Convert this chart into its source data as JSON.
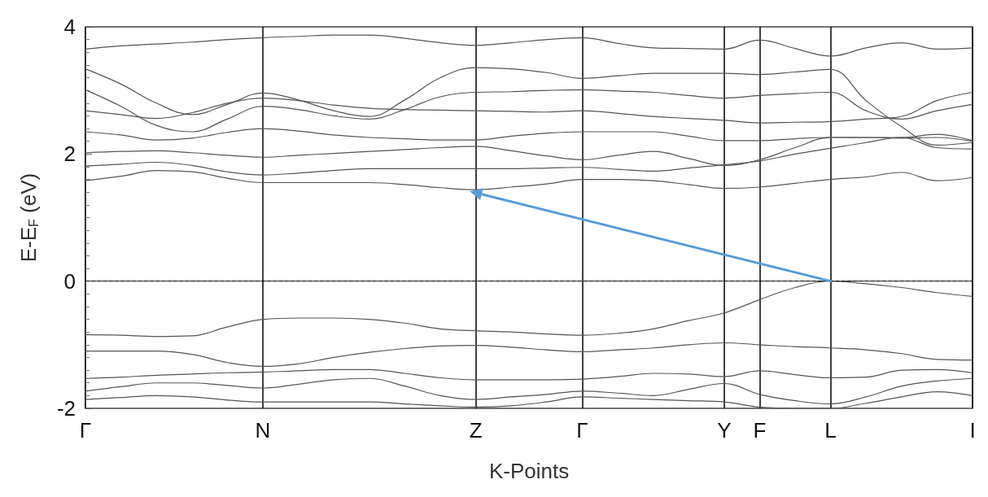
{
  "chart_data": {
    "type": "line",
    "xlabel": "K-Points",
    "ylabel": "E-E$_{F}$ (eV)",
    "categories": [
      "Γ",
      null,
      null,
      null,
      null,
      "N",
      null,
      null,
      null,
      null,
      null,
      "Z",
      null,
      null,
      "Γ",
      null,
      null,
      null,
      "Y",
      "F",
      null,
      "L",
      null,
      null,
      null,
      "I"
    ],
    "ylim": [
      -2,
      4
    ],
    "yticks": [
      -2,
      0,
      2,
      4
    ],
    "grid": "x",
    "line_style": "solid",
    "series": [
      {
        "color": "#555555",
        "values": [
          -0.84,
          -0.85,
          -0.87,
          -0.86,
          -0.72,
          -0.6,
          -0.58,
          -0.58,
          -0.6,
          -0.66,
          -0.75,
          -0.78,
          -0.8,
          -0.83,
          -0.85,
          -0.82,
          -0.75,
          -0.62,
          -0.5,
          -0.29,
          -0.1,
          0,
          -0.04,
          -0.1,
          -0.18,
          -0.24
        ]
      },
      {
        "color": "#555555",
        "values": [
          -1.1,
          -1.1,
          -1.1,
          -1.15,
          -1.28,
          -1.34,
          -1.3,
          -1.2,
          -1.12,
          -1.06,
          -1.02,
          -1.01,
          -1.04,
          -1.08,
          -1.11,
          -1.08,
          -1.05,
          -1.0,
          -0.97,
          -1.0,
          -1.03,
          -1.05,
          -1.08,
          -1.14,
          -1.23,
          -1.24
        ]
      },
      {
        "color": "#555555",
        "values": [
          -1.53,
          -1.51,
          -1.48,
          -1.46,
          -1.44,
          -1.43,
          -1.41,
          -1.39,
          -1.39,
          -1.45,
          -1.52,
          -1.55,
          -1.55,
          -1.55,
          -1.54,
          -1.5,
          -1.45,
          -1.46,
          -1.5,
          -1.41,
          -1.47,
          -1.52,
          -1.51,
          -1.4,
          -1.39,
          -1.44
        ]
      },
      {
        "color": "#555555",
        "values": [
          -1.73,
          -1.66,
          -1.6,
          -1.6,
          -1.64,
          -1.68,
          -1.62,
          -1.55,
          -1.53,
          -1.65,
          -1.8,
          -1.86,
          -1.82,
          -1.78,
          -1.73,
          -1.76,
          -1.8,
          -1.7,
          -1.61,
          -1.78,
          -1.88,
          -1.93,
          -1.82,
          -1.65,
          -1.57,
          -1.53
        ]
      },
      {
        "color": "#555555",
        "values": [
          -1.86,
          -1.83,
          -1.8,
          -1.82,
          -1.87,
          -1.9,
          -1.9,
          -1.9,
          -1.9,
          -1.93,
          -1.96,
          -1.98,
          -1.96,
          -1.9,
          -1.82,
          -1.84,
          -1.86,
          -1.88,
          -1.9,
          -1.98,
          -2.0,
          -2.0,
          -1.92,
          -1.82,
          -1.74,
          -1.8
        ]
      },
      {
        "color": "#555555",
        "values": [
          1.58,
          1.65,
          1.74,
          1.72,
          1.62,
          1.55,
          1.55,
          1.55,
          1.55,
          1.52,
          1.47,
          1.44,
          1.48,
          1.53,
          1.6,
          1.6,
          1.58,
          1.52,
          1.46,
          1.48,
          1.54,
          1.6,
          1.64,
          1.71,
          1.58,
          1.63
        ]
      },
      {
        "color": "#555555",
        "values": [
          1.81,
          1.84,
          1.87,
          1.82,
          1.72,
          1.67,
          1.7,
          1.74,
          1.77,
          1.77,
          1.77,
          1.77,
          1.77,
          1.78,
          1.79,
          1.76,
          1.73,
          1.78,
          1.83,
          1.89,
          2.0,
          2.09,
          2.18,
          2.26,
          2.1,
          2.08
        ]
      },
      {
        "color": "#555555",
        "values": [
          2.02,
          2.04,
          2.05,
          2.02,
          1.98,
          1.95,
          1.98,
          2.01,
          2.04,
          2.07,
          2.1,
          2.12,
          2.05,
          1.97,
          1.91,
          1.98,
          2.04,
          1.93,
          1.82,
          1.91,
          2.1,
          2.26,
          2.26,
          2.25,
          2.26,
          2.2
        ]
      },
      {
        "color": "#555555",
        "values": [
          2.35,
          2.3,
          2.22,
          2.25,
          2.34,
          2.4,
          2.36,
          2.3,
          2.26,
          2.24,
          2.22,
          2.22,
          2.28,
          2.33,
          2.35,
          2.35,
          2.35,
          2.28,
          2.21,
          2.21,
          2.24,
          2.26,
          2.26,
          2.26,
          2.31,
          2.21
        ]
      },
      {
        "color": "#555555",
        "values": [
          2.68,
          2.62,
          2.56,
          2.65,
          2.8,
          2.88,
          2.84,
          2.77,
          2.72,
          2.7,
          2.69,
          2.68,
          2.67,
          2.66,
          2.68,
          2.64,
          2.59,
          2.56,
          2.53,
          2.49,
          2.5,
          2.51,
          2.55,
          2.59,
          2.84,
          2.97
        ]
      },
      {
        "color": "#555555",
        "values": [
          3.34,
          3.1,
          2.8,
          2.62,
          2.78,
          2.96,
          2.85,
          2.68,
          2.59,
          2.85,
          3.2,
          3.36,
          3.34,
          3.28,
          3.19,
          3.23,
          3.27,
          3.27,
          3.27,
          3.25,
          3.29,
          3.33,
          2.84,
          2.43,
          2.14,
          2.18
        ]
      },
      {
        "color": "#555555",
        "values": [
          3.01,
          2.75,
          2.45,
          2.35,
          2.55,
          2.75,
          2.7,
          2.6,
          2.55,
          2.7,
          2.9,
          2.97,
          2.98,
          3.0,
          3.01,
          2.99,
          2.97,
          2.92,
          2.88,
          2.92,
          2.95,
          2.97,
          2.68,
          2.55,
          2.68,
          2.78
        ]
      },
      {
        "color": "#555555",
        "values": [
          3.65,
          3.7,
          3.73,
          3.76,
          3.8,
          3.83,
          3.85,
          3.87,
          3.87,
          3.82,
          3.75,
          3.71,
          3.75,
          3.8,
          3.83,
          3.74,
          3.67,
          3.66,
          3.65,
          3.79,
          3.66,
          3.54,
          3.67,
          3.75,
          3.65,
          3.67
        ]
      },
      {
        "color": "#5b9bd5",
        "x": [
          "L",
          "Z"
        ],
        "values": [
          0.0,
          1.39
        ],
        "marker": "triangle"
      }
    ],
    "ref_lines": [
      {
        "axis": "y",
        "value": 0,
        "color": "#000000",
        "line_style": "dashed"
      }
    ]
  }
}
